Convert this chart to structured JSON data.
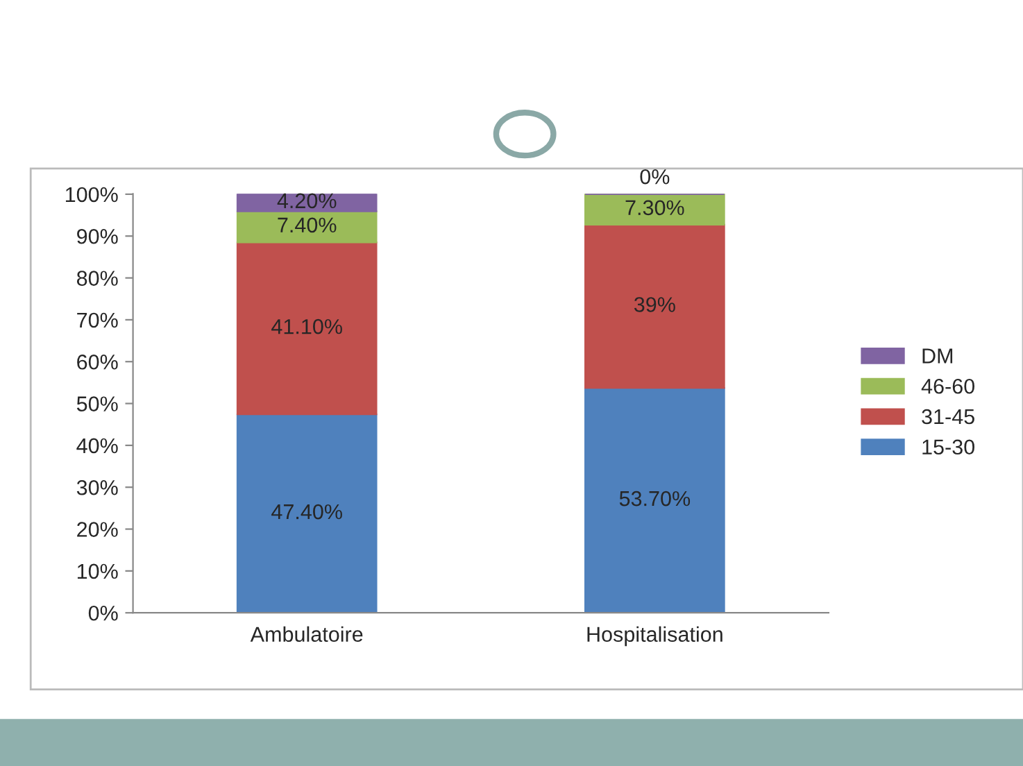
{
  "chart_data": {
    "type": "bar",
    "stacked": true,
    "categories": [
      "Ambulatoire",
      "Hospitalisation"
    ],
    "series": [
      {
        "name": "15-30",
        "color": "#4f81bd",
        "values": [
          47.4,
          53.7
        ],
        "value_labels": [
          "47.40%",
          "53.70%"
        ]
      },
      {
        "name": "31-45",
        "color": "#c0504d",
        "values": [
          41.1,
          39
        ],
        "value_labels": [
          "41.10%",
          "39%"
        ]
      },
      {
        "name": "46-60",
        "color": "#9bbb59",
        "values": [
          7.4,
          7.3
        ],
        "value_labels": [
          "7.40%",
          "7.30%"
        ]
      },
      {
        "name": "DM",
        "color": "#8064a2",
        "values": [
          4.2,
          0
        ],
        "value_labels": [
          "4.20%",
          "0%"
        ]
      }
    ],
    "ylim": [
      0,
      100.1
    ],
    "yticks": [
      {
        "value": 0,
        "label": "0%"
      },
      {
        "value": 10,
        "label": "10%"
      },
      {
        "value": 20,
        "label": "20%"
      },
      {
        "value": 30,
        "label": "30%"
      },
      {
        "value": 40,
        "label": "40%"
      },
      {
        "value": 50,
        "label": "50%"
      },
      {
        "value": 60,
        "label": "60%"
      },
      {
        "value": 70,
        "label": "70%"
      },
      {
        "value": 80,
        "label": "80%"
      },
      {
        "value": 90,
        "label": "90%"
      },
      {
        "value": 100,
        "label": "100%"
      }
    ],
    "grid": false,
    "legend": "right"
  }
}
